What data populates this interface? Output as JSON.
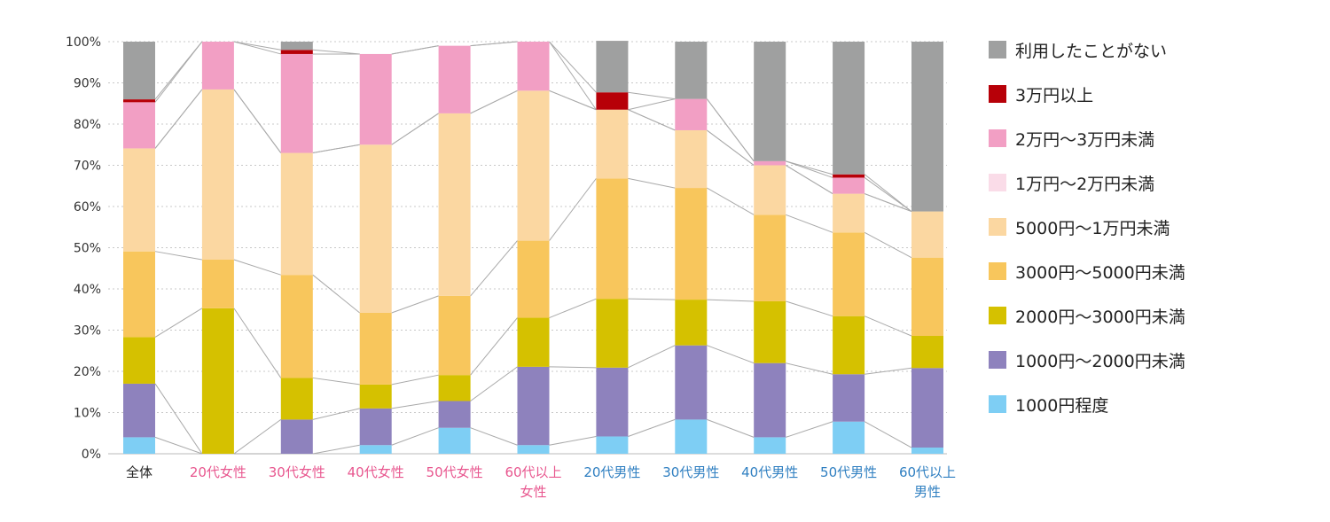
{
  "chart_data": {
    "type": "bar",
    "stacked": true,
    "percent": true,
    "categories": [
      "全体",
      "20代女性",
      "30代女性",
      "40代女性",
      "50代女性",
      "60代以上\n女性",
      "20代男性",
      "30代男性",
      "40代男性",
      "50代男性",
      "60代以上\n男性"
    ],
    "category_colors": [
      "#222222",
      "#e8578f",
      "#e8578f",
      "#e8578f",
      "#e8578f",
      "#e8578f",
      "#2f7fc1",
      "#2f7fc1",
      "#2f7fc1",
      "#2f7fc1",
      "#2f7fc1"
    ],
    "ylim": [
      0,
      100
    ],
    "yticks": [
      "0%",
      "10%",
      "20%",
      "30%",
      "40%",
      "50%",
      "60%",
      "70%",
      "80%",
      "90%",
      "100%"
    ],
    "grid": true,
    "legend_position": "right",
    "series": [
      {
        "name": "1000円程度",
        "color": "#7ecef4",
        "values": [
          4.0,
          0.0,
          0.0,
          2.1,
          6.3,
          2.1,
          4.2,
          8.3,
          4.0,
          7.8,
          1.5
        ]
      },
      {
        "name": "1000円～2000円未満",
        "color": "#8e82bd",
        "values": [
          13.0,
          0.0,
          8.3,
          8.9,
          6.5,
          19.0,
          16.7,
          18.0,
          18.0,
          11.5,
          19.3
        ]
      },
      {
        "name": "2000円～3000円未満",
        "color": "#d5c100",
        "values": [
          11.3,
          35.3,
          10.1,
          5.8,
          6.3,
          11.9,
          16.7,
          11.1,
          15.0,
          14.1,
          7.8
        ]
      },
      {
        "name": "3000円～5000円未満",
        "color": "#f8c65c",
        "values": [
          20.8,
          11.8,
          25.0,
          17.4,
          19.2,
          18.7,
          29.2,
          27.1,
          21.0,
          20.3,
          19.0
        ]
      },
      {
        "name": "5000円～1万円未満",
        "color": "#fbd7a1",
        "values": [
          25.0,
          41.3,
          29.6,
          40.8,
          44.3,
          36.4,
          16.7,
          14.0,
          12.0,
          9.4,
          11.2
        ]
      },
      {
        "name": "1万円～2万円未満",
        "color": "#fadce8",
        "values": [
          0.0,
          0.0,
          0.0,
          0.0,
          0.0,
          0.0,
          0.0,
          0.0,
          0.0,
          0.0,
          0.0
        ]
      },
      {
        "name": "2万円～3万円未満",
        "color": "#f29fc4",
        "values": [
          11.2,
          11.6,
          24.0,
          22.0,
          16.4,
          11.9,
          0.0,
          7.6,
          1.0,
          3.9,
          0.0
        ]
      },
      {
        "name": "3万円以上",
        "color": "#b70008",
        "values": [
          0.7,
          0.0,
          1.0,
          0.0,
          0.0,
          0.0,
          4.2,
          0.0,
          0.0,
          0.8,
          0.0
        ]
      },
      {
        "name": "利用したことがない",
        "color": "#9fa0a0",
        "values": [
          14.0,
          0.0,
          2.0,
          0.0,
          0.0,
          0.0,
          12.5,
          13.9,
          29.0,
          32.2,
          41.2
        ]
      }
    ]
  }
}
